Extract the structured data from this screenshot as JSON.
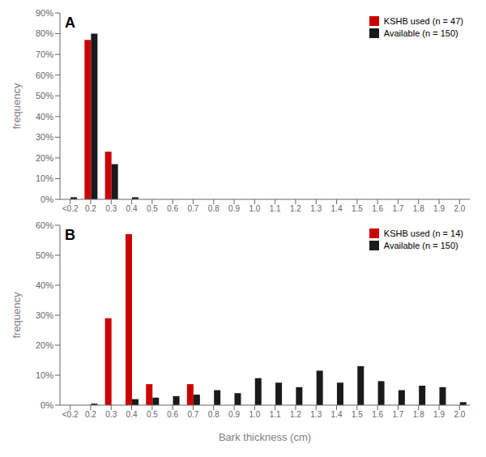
{
  "chart_data": [
    {
      "type": "bar",
      "title": "A",
      "categories": [
        "<0.2",
        "0.2",
        "0.3",
        "0.4",
        "0.5",
        "0.6",
        "0.7",
        "0.8",
        "0.9",
        "1.0",
        "1.1",
        "1.2",
        "1.3",
        "1.4",
        "1.5",
        "1.6",
        "1.7",
        "1.8",
        "1.9",
        "2.0"
      ],
      "series": [
        {
          "name": "KSHB used (n = 47)",
          "color": "#cc0000",
          "values": [
            0,
            77,
            23,
            0,
            0,
            0,
            0,
            0,
            0,
            0,
            0,
            0,
            0,
            0,
            0,
            0,
            0,
            0,
            0,
            0
          ]
        },
        {
          "name": "Available (n = 150)",
          "color": "#1a1a1a",
          "values": [
            1,
            80,
            17,
            1,
            0,
            0,
            0,
            0,
            0,
            0,
            0,
            0,
            0,
            0,
            0,
            0,
            0,
            0,
            0,
            0
          ]
        }
      ],
      "ylabel": "frequency",
      "ylim": [
        0,
        90
      ],
      "yticks": [
        {
          "value": 0,
          "label": "0%"
        },
        {
          "value": 10,
          "label": "10%"
        },
        {
          "value": 20,
          "label": "20%"
        },
        {
          "value": 30,
          "label": "30%"
        },
        {
          "value": 40,
          "label": "40%"
        },
        {
          "value": 50,
          "label": "50%"
        },
        {
          "value": 60,
          "label": "60%"
        },
        {
          "value": 70,
          "label": "70%"
        },
        {
          "value": 80,
          "label": "80%"
        },
        {
          "value": 90,
          "label": "90%"
        }
      ],
      "legend": "upper right",
      "grid": false
    },
    {
      "type": "bar",
      "title": "B",
      "categories": [
        "<0.2",
        "0.2",
        "0.3",
        "0.4",
        "0.5",
        "0.6",
        "0.7",
        "0.8",
        "0.9",
        "1.0",
        "1.1",
        "1.2",
        "1.3",
        "1.4",
        "1.5",
        "1.6",
        "1.7",
        "1.8",
        "1.9",
        "2.0"
      ],
      "series": [
        {
          "name": "KSHB used (n = 14)",
          "color": "#cc0000",
          "values": [
            0,
            0,
            29,
            57,
            7,
            0,
            7,
            0,
            0,
            0,
            0,
            0,
            0,
            0,
            0,
            0,
            0,
            0,
            0,
            0
          ]
        },
        {
          "name": "Available (n = 150)",
          "color": "#1a1a1a",
          "values": [
            0,
            0.5,
            0,
            2,
            2.5,
            3,
            3.5,
            5,
            4,
            9,
            7.5,
            6,
            11.5,
            7.5,
            13,
            8,
            5,
            6.5,
            6,
            1
          ]
        }
      ],
      "ylabel": "frequency",
      "xlabel": "Bark thickness (cm)",
      "ylim": [
        0,
        60
      ],
      "yticks": [
        {
          "value": 0,
          "label": "0%"
        },
        {
          "value": 10,
          "label": "10%"
        },
        {
          "value": 20,
          "label": "20%"
        },
        {
          "value": 30,
          "label": "30%"
        },
        {
          "value": 40,
          "label": "40%"
        },
        {
          "value": 50,
          "label": "50%"
        },
        {
          "value": 60,
          "label": "60%"
        }
      ],
      "legend": "upper right",
      "grid": false
    }
  ]
}
